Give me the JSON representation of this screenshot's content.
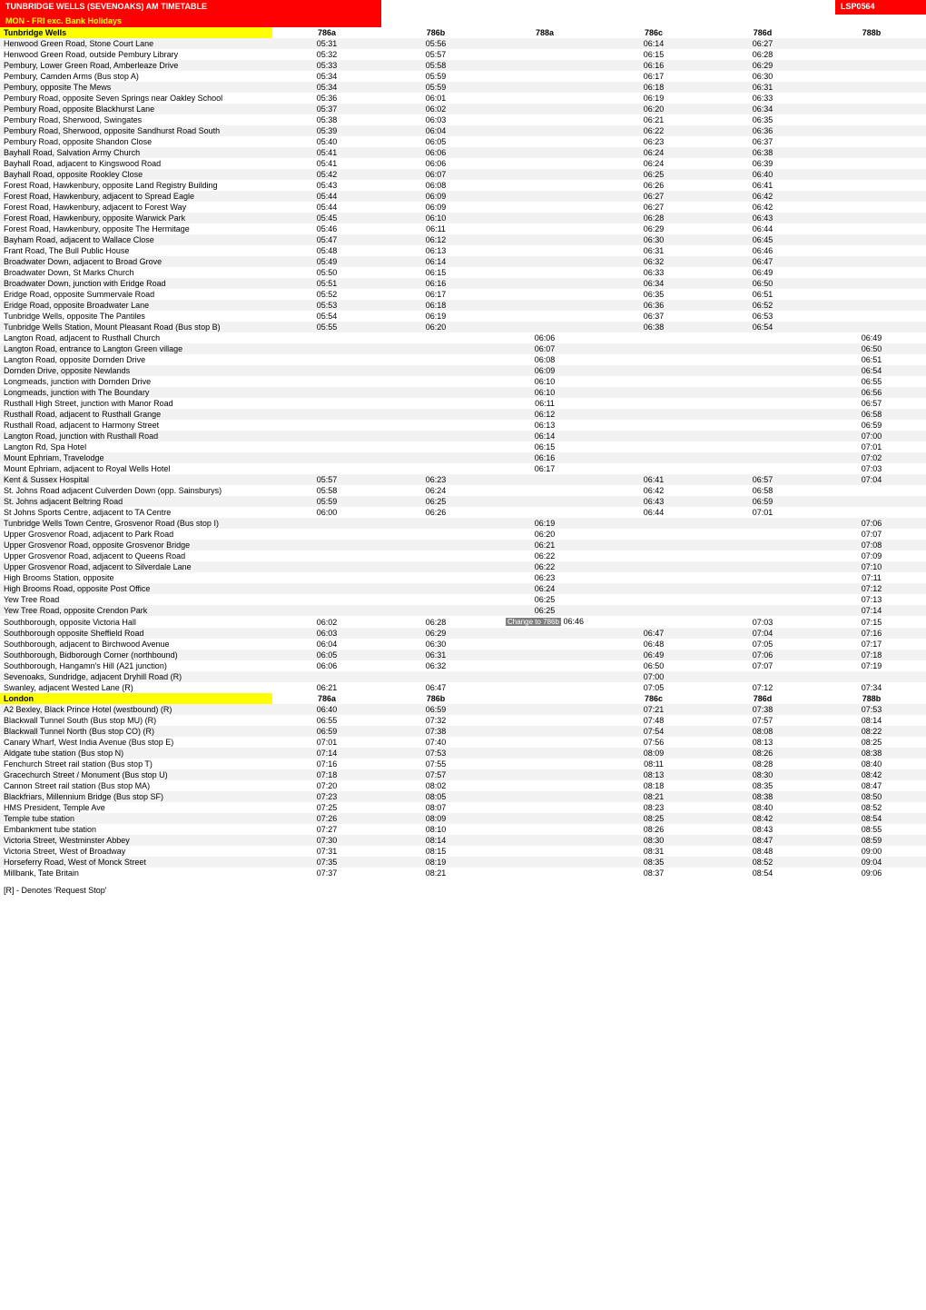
{
  "title_left": "TUNBRIDGE WELLS (SEVENOAKS) AM TIMETABLE",
  "title_right": "LSP0564",
  "subtitle": "MON - FRI exc. Bank Holidays",
  "footer": "[R] - Denotes 'Request Stop'",
  "colors": {
    "header_bg": "#ff0000",
    "header_fg": "#ffffff",
    "subtitle_fg": "#ffff00",
    "section_bg": "#ffff00",
    "row_even": "#f2f2f2",
    "row_odd": "#ffffff",
    "note_bg": "#808080",
    "note_fg": "#ffffff"
  },
  "columns": [
    "786a",
    "786b",
    "788a",
    "786c",
    "786d",
    "788b"
  ],
  "sections": [
    {
      "name": "Tunbridge Wells",
      "header_cols": [
        "786a",
        "786b",
        "788a",
        "786c",
        "786d",
        "788b"
      ],
      "rows": [
        {
          "stop": "Henwood Green Road, Stone Court Lane",
          "t": [
            "05:31",
            "05:56",
            "",
            "06:14",
            "06:27",
            ""
          ]
        },
        {
          "stop": "Henwood Green Road, outside Pembury Library",
          "t": [
            "05:32",
            "05:57",
            "",
            "06:15",
            "06:28",
            ""
          ]
        },
        {
          "stop": "Pembury, Lower Green Road, Amberleaze Drive",
          "t": [
            "05:33",
            "05:58",
            "",
            "06:16",
            "06:29",
            ""
          ]
        },
        {
          "stop": "Pembury, Camden Arms (Bus stop A)",
          "t": [
            "05:34",
            "05:59",
            "",
            "06:17",
            "06:30",
            ""
          ]
        },
        {
          "stop": "Pembury, opposite The Mews",
          "t": [
            "05:34",
            "05:59",
            "",
            "06:18",
            "06:31",
            ""
          ]
        },
        {
          "stop": "Pembury Road, opposite Seven Springs near Oakley School",
          "t": [
            "05:36",
            "06:01",
            "",
            "06:19",
            "06:33",
            ""
          ]
        },
        {
          "stop": "Pembury Road, opposite Blackhurst Lane",
          "t": [
            "05:37",
            "06:02",
            "",
            "06:20",
            "06:34",
            ""
          ]
        },
        {
          "stop": "Pembury Road, Sherwood, Swingates",
          "t": [
            "05:38",
            "06:03",
            "",
            "06:21",
            "06:35",
            ""
          ]
        },
        {
          "stop": "Pembury Road, Sherwood, opposite Sandhurst Road South",
          "t": [
            "05:39",
            "06:04",
            "",
            "06:22",
            "06:36",
            ""
          ]
        },
        {
          "stop": "Pembury Road, opposite Shandon Close",
          "t": [
            "05:40",
            "06:05",
            "",
            "06:23",
            "06:37",
            ""
          ]
        },
        {
          "stop": "Bayhall Road, Salvation Army Church",
          "t": [
            "05:41",
            "06:06",
            "",
            "06:24",
            "06:38",
            ""
          ]
        },
        {
          "stop": "Bayhall Road, adjacent to Kingswood Road",
          "t": [
            "05:41",
            "06:06",
            "",
            "06:24",
            "06:39",
            ""
          ]
        },
        {
          "stop": "Bayhall Road, opposite Rookley Close",
          "t": [
            "05:42",
            "06:07",
            "",
            "06:25",
            "06:40",
            ""
          ]
        },
        {
          "stop": "Forest Road, Hawkenbury, opposite Land Registry Building",
          "t": [
            "05:43",
            "06:08",
            "",
            "06:26",
            "06:41",
            ""
          ]
        },
        {
          "stop": "Forest Road, Hawkenbury, adjacent to Spread Eagle",
          "t": [
            "05:44",
            "06:09",
            "",
            "06:27",
            "06:42",
            ""
          ]
        },
        {
          "stop": "Forest Road, Hawkenbury, adjacent to Forest Way",
          "t": [
            "05:44",
            "06:09",
            "",
            "06:27",
            "06:42",
            ""
          ]
        },
        {
          "stop": "Forest Road, Hawkenbury, opposite Warwick Park",
          "t": [
            "05:45",
            "06:10",
            "",
            "06:28",
            "06:43",
            ""
          ]
        },
        {
          "stop": "Forest Road, Hawkenbury, opposite The Hermitage",
          "t": [
            "05:46",
            "06:11",
            "",
            "06:29",
            "06:44",
            ""
          ]
        },
        {
          "stop": "Bayham Road, adjacent to Wallace Close",
          "t": [
            "05:47",
            "06:12",
            "",
            "06:30",
            "06:45",
            ""
          ]
        },
        {
          "stop": "Frant Road, The Bull Public House",
          "t": [
            "05:48",
            "06:13",
            "",
            "06:31",
            "06:46",
            ""
          ]
        },
        {
          "stop": "Broadwater Down, adjacent to Broad Grove",
          "t": [
            "05:49",
            "06:14",
            "",
            "06:32",
            "06:47",
            ""
          ]
        },
        {
          "stop": "Broadwater Down, St Marks Church",
          "t": [
            "05:50",
            "06:15",
            "",
            "06:33",
            "06:49",
            ""
          ]
        },
        {
          "stop": "Broadwater Down, junction with Eridge Road",
          "t": [
            "05:51",
            "06:16",
            "",
            "06:34",
            "06:50",
            ""
          ]
        },
        {
          "stop": "Eridge Road, opposite Summervale Road",
          "t": [
            "05:52",
            "06:17",
            "",
            "06:35",
            "06:51",
            ""
          ]
        },
        {
          "stop": "Eridge Road, opposite Broadwater Lane",
          "t": [
            "05:53",
            "06:18",
            "",
            "06:36",
            "06:52",
            ""
          ]
        },
        {
          "stop": "Tunbridge Wells, opposite The Pantiles",
          "t": [
            "05:54",
            "06:19",
            "",
            "06:37",
            "06:53",
            ""
          ]
        },
        {
          "stop": "Tunbridge Wells Station, Mount Pleasant Road (Bus stop B)",
          "t": [
            "05:55",
            "06:20",
            "",
            "06:38",
            "06:54",
            ""
          ]
        },
        {
          "stop": "Langton Road, adjacent to Rusthall Church",
          "t": [
            "",
            "",
            "06:06",
            "",
            "",
            "06:49"
          ]
        },
        {
          "stop": "Langton Road, entrance to Langton Green village",
          "t": [
            "",
            "",
            "06:07",
            "",
            "",
            "06:50"
          ]
        },
        {
          "stop": "Langton Road, opposite Dornden Drive",
          "t": [
            "",
            "",
            "06:08",
            "",
            "",
            "06:51"
          ]
        },
        {
          "stop": "Dornden Drive, opposite Newlands",
          "t": [
            "",
            "",
            "06:09",
            "",
            "",
            "06:54"
          ]
        },
        {
          "stop": "Longmeads, junction with Dornden Drive",
          "t": [
            "",
            "",
            "06:10",
            "",
            "",
            "06:55"
          ]
        },
        {
          "stop": "Longmeads, junction with The Boundary",
          "t": [
            "",
            "",
            "06:10",
            "",
            "",
            "06:56"
          ]
        },
        {
          "stop": "Rusthall High Street, junction with Manor Road",
          "t": [
            "",
            "",
            "06:11",
            "",
            "",
            "06:57"
          ]
        },
        {
          "stop": "Rusthall Road, adjacent to Rusthall Grange",
          "t": [
            "",
            "",
            "06:12",
            "",
            "",
            "06:58"
          ]
        },
        {
          "stop": "Rusthall Road, adjacent to Harmony Street",
          "t": [
            "",
            "",
            "06:13",
            "",
            "",
            "06:59"
          ]
        },
        {
          "stop": "Langton Road, junction with Rusthall Road",
          "t": [
            "",
            "",
            "06:14",
            "",
            "",
            "07:00"
          ]
        },
        {
          "stop": "Langton Rd, Spa Hotel",
          "t": [
            "",
            "",
            "06:15",
            "",
            "",
            "07:01"
          ]
        },
        {
          "stop": "Mount Ephriam, Travelodge",
          "t": [
            "",
            "",
            "06:16",
            "",
            "",
            "07:02"
          ]
        },
        {
          "stop": "Mount Ephriam, adjacent to Royal Wells Hotel",
          "t": [
            "",
            "",
            "06:17",
            "",
            "",
            "07:03"
          ]
        },
        {
          "stop": "Kent & Sussex Hospital",
          "t": [
            "05:57",
            "06:23",
            "",
            "06:41",
            "06:57",
            "07:04"
          ]
        },
        {
          "stop": "St. Johns Road adjacent Culverden Down (opp. Sainsburys)",
          "t": [
            "05:58",
            "06:24",
            "",
            "06:42",
            "06:58",
            ""
          ]
        },
        {
          "stop": "St. Johns adjacent Beltring Road",
          "t": [
            "05:59",
            "06:25",
            "",
            "06:43",
            "06:59",
            ""
          ]
        },
        {
          "stop": "St Johns Sports Centre, adjacent to TA Centre",
          "t": [
            "06:00",
            "06:26",
            "",
            "06:44",
            "07:01",
            ""
          ]
        },
        {
          "stop": "Tunbridge Wells Town Centre, Grosvenor Road (Bus stop I)",
          "t": [
            "",
            "",
            "06:19",
            "",
            "",
            "07:06"
          ]
        },
        {
          "stop": "Upper Grosvenor Road, adjacent to Park Road",
          "t": [
            "",
            "",
            "06:20",
            "",
            "",
            "07:07"
          ]
        },
        {
          "stop": "Upper Grosvenor Road, opposite Grosvenor Bridge",
          "t": [
            "",
            "",
            "06:21",
            "",
            "",
            "07:08"
          ]
        },
        {
          "stop": "Upper Grosvenor Road, adjacent to Queens Road",
          "t": [
            "",
            "",
            "06:22",
            "",
            "",
            "07:09"
          ]
        },
        {
          "stop": "Upper Grosvenor Road, adjacent to Silverdale Lane",
          "t": [
            "",
            "",
            "06:22",
            "",
            "",
            "07:10"
          ]
        },
        {
          "stop": "High Brooms Station, opposite",
          "t": [
            "",
            "",
            "06:23",
            "",
            "",
            "07:11"
          ]
        },
        {
          "stop": "High Brooms Road, opposite Post Office",
          "t": [
            "",
            "",
            "06:24",
            "",
            "",
            "07:12"
          ]
        },
        {
          "stop": "Yew Tree Road",
          "t": [
            "",
            "",
            "06:25",
            "",
            "",
            "07:13"
          ]
        },
        {
          "stop": "Yew Tree Road, opposite Crendon Park",
          "t": [
            "",
            "",
            "06:25",
            "",
            "",
            "07:14"
          ]
        },
        {
          "stop": "Southborough, opposite Victoria Hall",
          "t": [
            "06:02",
            "06:28",
            {
              "note": "Change to 786b",
              "time": "06:46"
            },
            "",
            "07:03",
            "07:15"
          ]
        },
        {
          "stop": "Southborough opposite Sheffield Road",
          "t": [
            "06:03",
            "06:29",
            "",
            "06:47",
            "07:04",
            "07:16"
          ]
        },
        {
          "stop": "Southborough, adjacent to Birchwood Avenue",
          "t": [
            "06:04",
            "06:30",
            "",
            "06:48",
            "07:05",
            "07:17"
          ]
        },
        {
          "stop": "Southborough, Bidborough Corner (northbound)",
          "t": [
            "06:05",
            "06:31",
            "",
            "06:49",
            "07:06",
            "07:18"
          ]
        },
        {
          "stop": "Southborough, Hangamn's Hill (A21 junction)",
          "t": [
            "06:06",
            "06:32",
            "",
            "06:50",
            "07:07",
            "07:19"
          ]
        },
        {
          "stop": "Sevenoaks, Sundridge, adjacent Dryhill Road (R)",
          "t": [
            "",
            "",
            "",
            "07:00",
            "",
            ""
          ]
        },
        {
          "stop": "Swanley, adjacent Wested Lane (R)",
          "t": [
            "06:21",
            "06:47",
            "",
            "07:05",
            "07:12",
            "07:34"
          ]
        }
      ]
    },
    {
      "name": "London",
      "header_cols": [
        "786a",
        "786b",
        "",
        "786c",
        "786d",
        "788b"
      ],
      "rows": [
        {
          "stop": "A2 Bexley, Black Prince Hotel (westbound) (R)",
          "t": [
            "06:40",
            "06:59",
            "",
            "07:21",
            "07:38",
            "07:53"
          ]
        },
        {
          "stop": "Blackwall Tunnel South (Bus stop MU) (R)",
          "t": [
            "06:55",
            "07:32",
            "",
            "07:48",
            "07:57",
            "08:14"
          ]
        },
        {
          "stop": "Blackwall Tunnel North (Bus stop CO) (R)",
          "t": [
            "06:59",
            "07:38",
            "",
            "07:54",
            "08:08",
            "08:22"
          ]
        },
        {
          "stop": "Canary Wharf, West India Avenue (Bus stop E)",
          "t": [
            "07:01",
            "07:40",
            "",
            "07:56",
            "08:13",
            "08:25"
          ]
        },
        {
          "stop": "Aldgate tube station (Bus stop N)",
          "t": [
            "07:14",
            "07:53",
            "",
            "08:09",
            "08:26",
            "08:38"
          ]
        },
        {
          "stop": "Fenchurch Street rail station (Bus stop T)",
          "t": [
            "07:16",
            "07:55",
            "",
            "08:11",
            "08:28",
            "08:40"
          ]
        },
        {
          "stop": "Gracechurch Street / Monument (Bus stop U)",
          "t": [
            "07:18",
            "07:57",
            "",
            "08:13",
            "08:30",
            "08:42"
          ]
        },
        {
          "stop": "Cannon Street rail station (Bus stop MA)",
          "t": [
            "07:20",
            "08:02",
            "",
            "08:18",
            "08:35",
            "08:47"
          ]
        },
        {
          "stop": "Blackfriars, Millennium Bridge (Bus stop SF)",
          "t": [
            "07:23",
            "08:05",
            "",
            "08:21",
            "08:38",
            "08:50"
          ]
        },
        {
          "stop": "HMS President, Temple Ave",
          "t": [
            "07:25",
            "08:07",
            "",
            "08:23",
            "08:40",
            "08:52"
          ]
        },
        {
          "stop": "Temple tube station",
          "t": [
            "07:26",
            "08:09",
            "",
            "08:25",
            "08:42",
            "08:54"
          ]
        },
        {
          "stop": "Embankment tube station",
          "t": [
            "07:27",
            "08:10",
            "",
            "08:26",
            "08:43",
            "08:55"
          ]
        },
        {
          "stop": "Victoria Street, Westminster Abbey",
          "t": [
            "07:30",
            "08:14",
            "",
            "08:30",
            "08:47",
            "08:59"
          ]
        },
        {
          "stop": "Victoria Street, West of Broadway",
          "t": [
            "07:31",
            "08:15",
            "",
            "08:31",
            "08:48",
            "09:00"
          ]
        },
        {
          "stop": "Horseferry Road, West of Monck Street",
          "t": [
            "07:35",
            "08:19",
            "",
            "08:35",
            "08:52",
            "09:04"
          ]
        },
        {
          "stop": "Millbank, Tate Britain",
          "t": [
            "07:37",
            "08:21",
            "",
            "08:37",
            "08:54",
            "09:06"
          ]
        }
      ]
    }
  ]
}
